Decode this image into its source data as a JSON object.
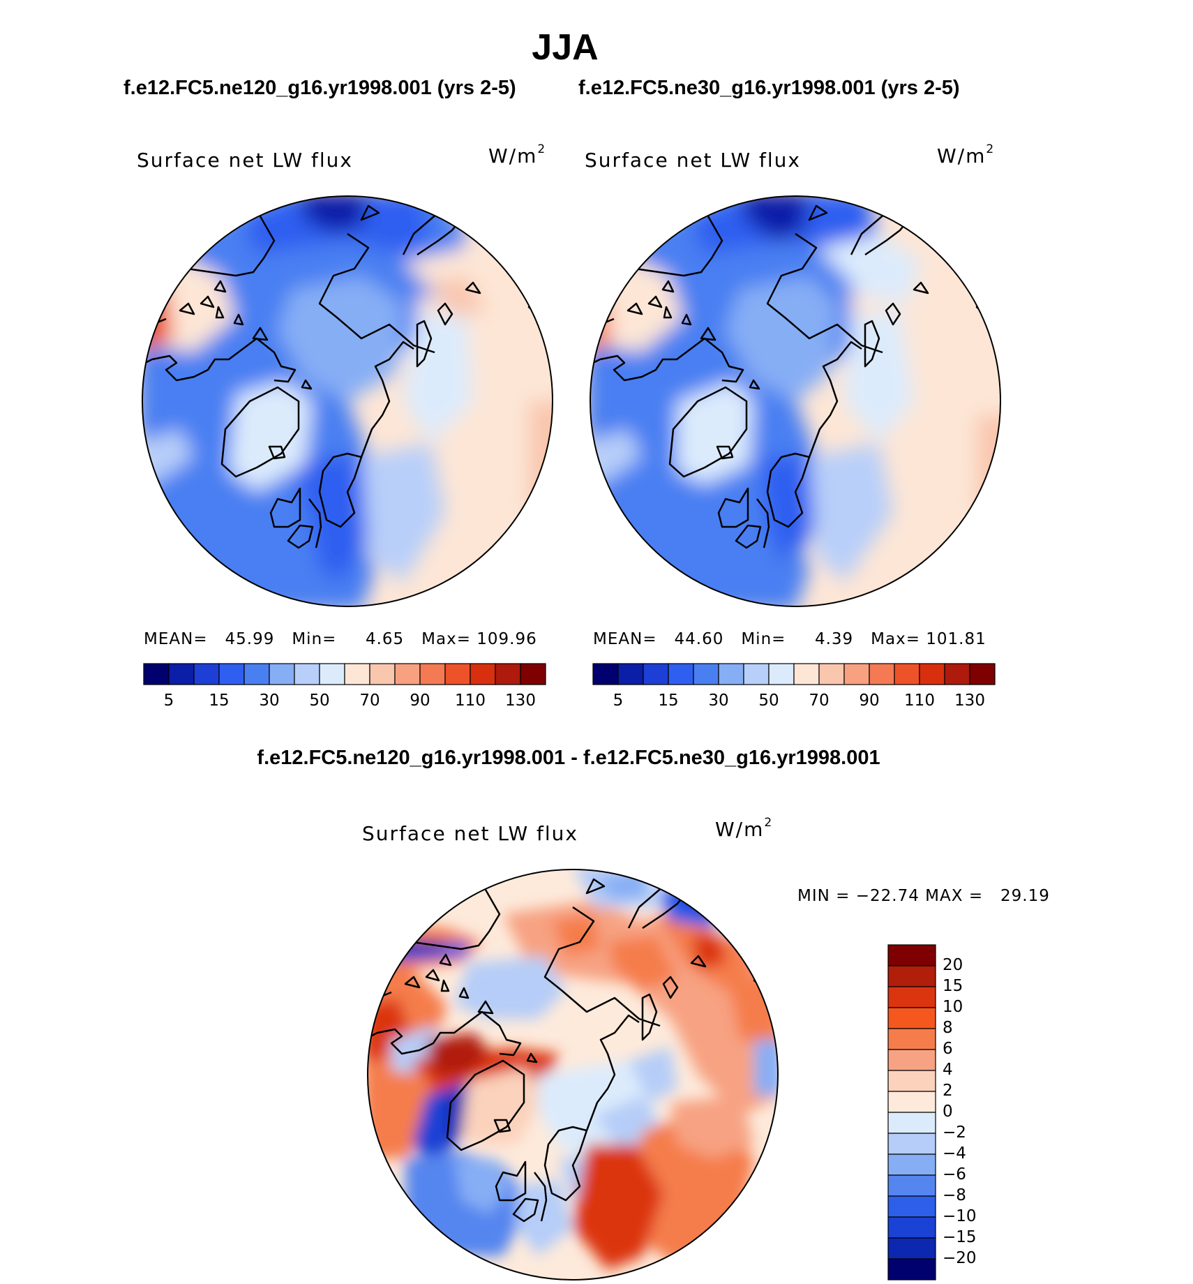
{
  "figure": {
    "season": "JJA",
    "case_left": "f.e12.FC5.ne120_g16.yr1998.001 (yrs 2-5)",
    "case_right": "f.e12.FC5.ne30_g16.yr1998.001 (yrs 2-5)",
    "diff_title": "f.e12.FC5.ne120_g16.yr1998.001 - f.e12.FC5.ne30_g16.yr1998.001"
  },
  "panels": {
    "left": {
      "variable": "Surface net LW flux",
      "units_base": "W/m",
      "units_exp": "2",
      "mean_label": "MEAN=",
      "mean_value": "45.99",
      "min_label": "Min=",
      "min_value": "4.65",
      "max_label": "Max=",
      "max_value": "109.96"
    },
    "right": {
      "variable": "Surface net LW flux",
      "units_base": "W/m",
      "units_exp": "2",
      "mean_label": "MEAN=",
      "mean_value": "44.60",
      "min_label": "Min=",
      "min_value": "4.39",
      "max_label": "Max=",
      "max_value": "101.81"
    },
    "diff": {
      "variable": "Surface net LW flux",
      "units_base": "W/m",
      "units_exp": "2",
      "min_label": "MIN =",
      "min_value": "−22.74",
      "max_label": "MAX =",
      "max_value": "29.19"
    }
  },
  "colorbars": {
    "abs": {
      "colors": [
        "#00006e",
        "#0a1ea8",
        "#1e3fd6",
        "#2e5ff0",
        "#4a7ff2",
        "#86aef5",
        "#b8cff9",
        "#dcebfc",
        "#fde6d6",
        "#f9c6ae",
        "#f7a181",
        "#f47a54",
        "#ee5228",
        "#d8300f",
        "#ae1a0c",
        "#7e0000"
      ],
      "labels": [
        "5",
        "15",
        "30",
        "50",
        "70",
        "90",
        "110",
        "130"
      ]
    },
    "diff": {
      "colors": [
        "#7e0000",
        "#b11e0a",
        "#db3510",
        "#f5581e",
        "#f57d4c",
        "#f7a282",
        "#fbd2bc",
        "#fdeadb",
        "#dcebfc",
        "#b5cdf8",
        "#86aef5",
        "#5585ef",
        "#2e5fea",
        "#1a42d5",
        "#0c28b0",
        "#00006e"
      ],
      "labels": [
        "20",
        "15",
        "10",
        "8",
        "6",
        "4",
        "2",
        "0",
        "−2",
        "−4",
        "−6",
        "−8",
        "−10",
        "−15",
        "−20"
      ]
    }
  }
}
